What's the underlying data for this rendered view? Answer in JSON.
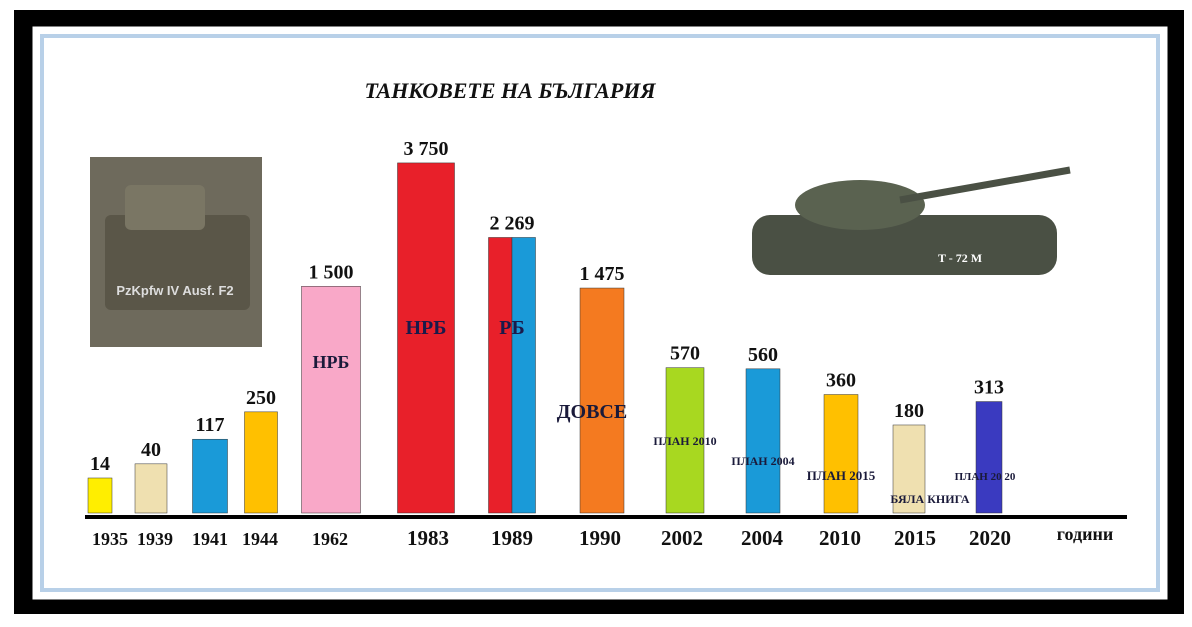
{
  "chart_data": {
    "type": "bar",
    "title": "ТАНКОВЕТЕ НА БЪЛГАРИЯ",
    "x_label": "години",
    "categories": [
      "1935",
      "1939",
      "1941",
      "1944",
      "1962",
      "1983",
      "1989",
      "1990",
      "2002",
      "2004",
      "2010",
      "2015",
      "2020"
    ],
    "values": [
      14,
      40,
      117,
      250,
      1500,
      3750,
      2269,
      1475,
      570,
      560,
      360,
      180,
      313
    ],
    "value_labels": [
      "14",
      "40",
      "117",
      "250",
      "1 500",
      "3 750",
      "2 269",
      "1 475",
      "570",
      "560",
      "360",
      "180",
      "313"
    ],
    "colors": [
      "#ffee00",
      "#efe0b0",
      "#1a9ad8",
      "#ffc000",
      "#f9a8c8",
      "#e8202a",
      [
        "#e8202a",
        "#1a9ad8"
      ],
      "#f47a20",
      "#a8d820",
      "#1a9ad8",
      "#ffc000",
      "#efe0b0",
      "#3a3ac0"
    ],
    "annotations": [
      null,
      null,
      null,
      null,
      "НРБ",
      "НРБ",
      "РБ",
      "ДОВСЕ",
      "ПЛАН 2010",
      "ПЛАН 2004",
      "ПЛАН 2015",
      "БЯЛА КНИГА",
      "ПЛАН 20 20"
    ],
    "image_captions": [
      "PzKpfw IV Ausf. F2",
      "T - 72 M"
    ]
  }
}
